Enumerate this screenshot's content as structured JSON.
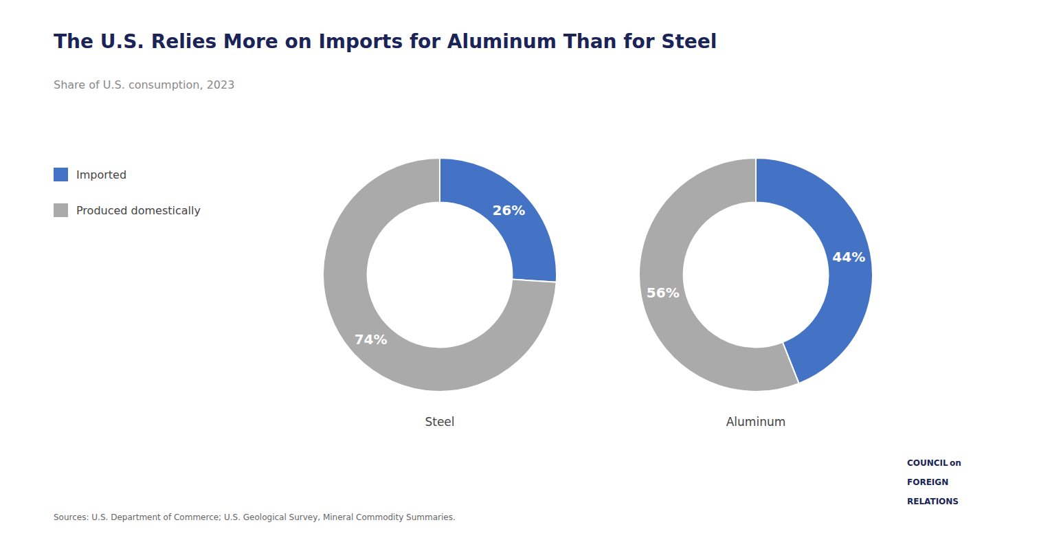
{
  "title": "The U.S. Relies More on Imports for Aluminum Than for Steel",
  "subtitle": "Share of U.S. consumption, 2023",
  "legend": "left",
  "annotations": [
    "Sources: U.S. Department of Commerce; U.S. Geological Survey, Mineral Commodity Summaries.",
    "COUNCIL on",
    "FOREIGN",
    "RELATIONS"
  ],
  "chart_data": [
    {
      "type": "pie",
      "title": "Steel",
      "categories": [
        "Imported",
        "Produced domestically"
      ],
      "values": [
        26,
        74
      ],
      "value_labels": [
        "26%",
        "74%"
      ],
      "colors": [
        "#4472C4",
        "#AAAAAA"
      ],
      "data_labels": true
    },
    {
      "type": "pie",
      "title": "Aluminum",
      "categories": [
        "Imported",
        "Produced domestically"
      ],
      "values": [
        44,
        56
      ],
      "value_labels": [
        "44%",
        "56%"
      ],
      "colors": [
        "#4472C4",
        "#AAAAAA"
      ],
      "data_labels": true
    }
  ]
}
